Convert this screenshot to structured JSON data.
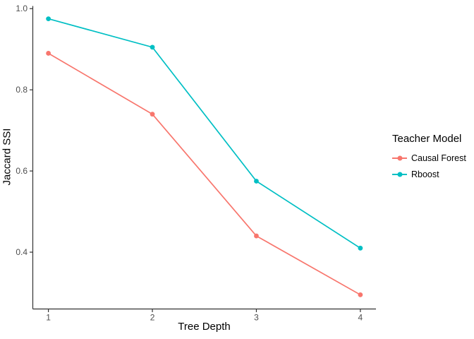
{
  "chart_data": {
    "type": "line",
    "title": "",
    "xlabel": "Tree Depth",
    "ylabel": "Jaccard SSI",
    "x": [
      1,
      2,
      3,
      4
    ],
    "series": [
      {
        "name": "Causal Forest",
        "color": "#F8766D",
        "values": [
          0.89,
          0.74,
          0.44,
          0.295
        ]
      },
      {
        "name": "Rboost",
        "color": "#00BFC4",
        "values": [
          0.975,
          0.905,
          0.575,
          0.41
        ]
      }
    ],
    "xlim": [
      0.85,
      4.15
    ],
    "ylim": [
      0.26,
      1.01
    ],
    "x_ticks": {
      "values": [
        1,
        2,
        3,
        4
      ],
      "labels": [
        "1",
        "2",
        "3",
        "4"
      ]
    },
    "y_ticks": {
      "values": [
        0.4,
        0.6,
        0.8,
        1.0
      ],
      "labels": [
        "0.4",
        "0.6",
        "0.8",
        "1.0"
      ]
    },
    "grid": false,
    "legend": {
      "title": "Teacher Model",
      "position": "right"
    },
    "style": {
      "background": "#FFFFFF",
      "axis_color": "#333333",
      "tick_label_color": "#4D4D4D",
      "text_color": "#000000"
    }
  }
}
